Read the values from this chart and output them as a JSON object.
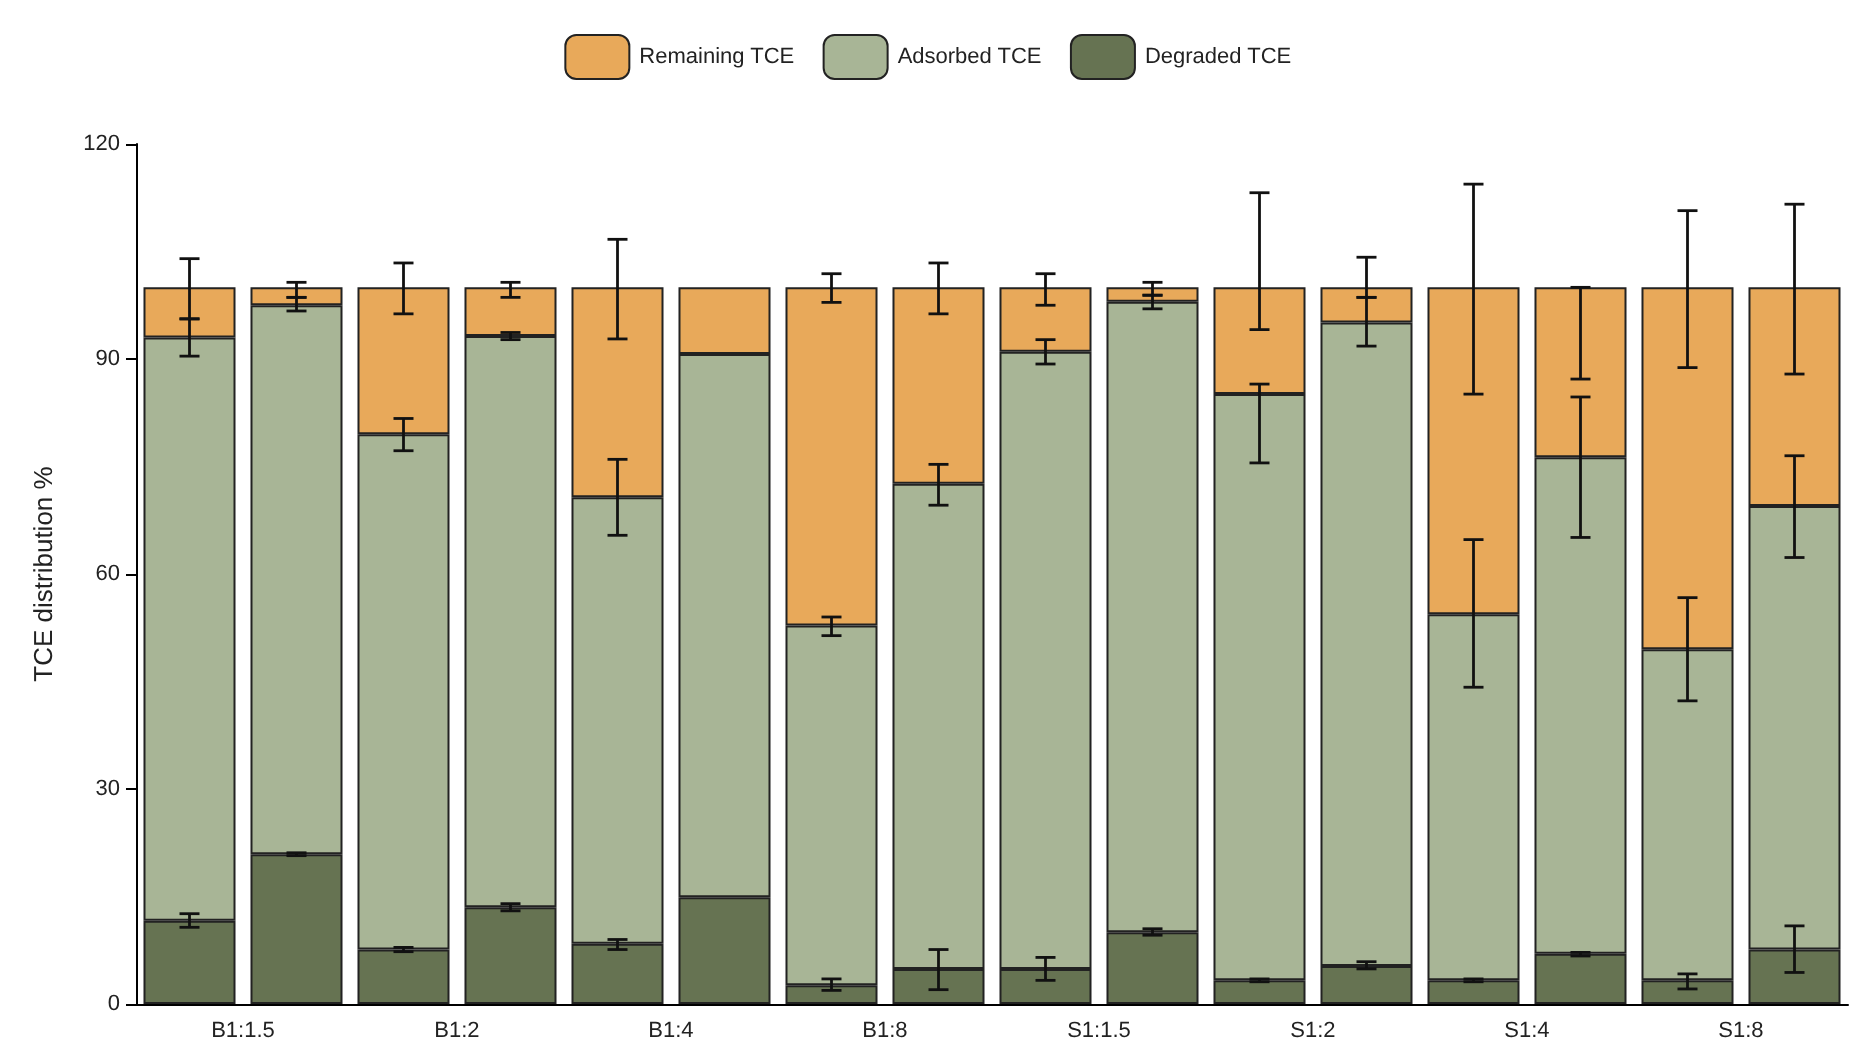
{
  "chart_data": {
    "type": "bar",
    "stacked": true,
    "ylabel": "TCE distribution %",
    "categories": [
      "B1:1.5",
      null,
      "B1:2",
      null,
      "B1:4",
      null,
      "B1:8",
      null,
      "S1:1.5",
      null,
      "S1:2",
      null,
      "S1:4",
      null,
      "S1:8",
      null
    ],
    "series": [
      {
        "name": "Degraded TCE",
        "color": "#667352",
        "values": [
          11.6,
          20.9,
          7.6,
          13.5,
          8.4,
          14.9,
          2.6,
          4.9,
          4.9,
          10.0,
          3.3,
          5.3,
          3.3,
          7.0,
          3.3,
          7.6
        ],
        "errors": [
          [
            10.7,
            12.6
          ],
          [
            20.7,
            21.1
          ],
          [
            7.3,
            7.9
          ],
          [
            13.0,
            14.0
          ],
          [
            7.6,
            9.0
          ],
          null,
          [
            1.9,
            3.5
          ],
          [
            2.0,
            7.6
          ],
          [
            3.3,
            6.5
          ],
          [
            9.6,
            10.5
          ],
          [
            3.1,
            3.5
          ],
          [
            4.9,
            5.9
          ],
          [
            3.1,
            3.5
          ],
          [
            6.7,
            7.2
          ],
          [
            2.1,
            4.2
          ],
          [
            4.4,
            10.9
          ]
        ]
      },
      {
        "name": "Adsorbed TCE",
        "color": "#a8b596",
        "values": [
          81.4,
          76.6,
          71.9,
          79.7,
          62.3,
          75.8,
          50.2,
          67.7,
          86.1,
          88.0,
          81.8,
          89.8,
          51.1,
          69.3,
          46.2,
          61.9
        ],
        "errors": [
          [
            90.4,
            95.6
          ],
          [
            96.7,
            98.6
          ],
          [
            77.2,
            81.7
          ],
          [
            92.7,
            93.7
          ],
          [
            65.4,
            76.0
          ],
          null,
          [
            51.4,
            54.0
          ],
          [
            69.6,
            75.3
          ],
          [
            89.3,
            92.7
          ],
          [
            97.0,
            98.9
          ],
          [
            75.5,
            86.5
          ],
          [
            91.8,
            98.6
          ],
          [
            44.2,
            64.8
          ],
          [
            65.1,
            84.7
          ],
          [
            42.3,
            56.7
          ],
          [
            62.3,
            76.5
          ]
        ]
      },
      {
        "name": "Remaining TCE",
        "color": "#e8a95a",
        "values": [
          7.0,
          2.5,
          20.5,
          6.8,
          29.3,
          9.3,
          47.2,
          27.4,
          9.0,
          2.0,
          14.9,
          4.9,
          45.6,
          23.7,
          50.5,
          30.5
        ],
        "errors": [
          [
            95.6,
            104.0
          ],
          [
            98.6,
            100.7
          ],
          [
            96.3,
            103.4
          ],
          [
            98.6,
            100.7
          ],
          [
            92.8,
            106.7
          ],
          null,
          [
            97.9,
            101.9
          ],
          [
            96.3,
            103.4
          ],
          [
            97.5,
            101.9
          ],
          [
            98.9,
            100.7
          ],
          [
            94.1,
            113.2
          ],
          [
            98.6,
            104.2
          ],
          [
            85.1,
            114.4
          ],
          [
            87.2,
            100.0
          ],
          [
            88.8,
            110.7
          ],
          [
            87.9,
            111.6
          ]
        ]
      }
    ],
    "ylim": [
      0,
      120
    ],
    "yticks": [
      0,
      30,
      60,
      90,
      120
    ],
    "grid": false,
    "legend": "top"
  }
}
